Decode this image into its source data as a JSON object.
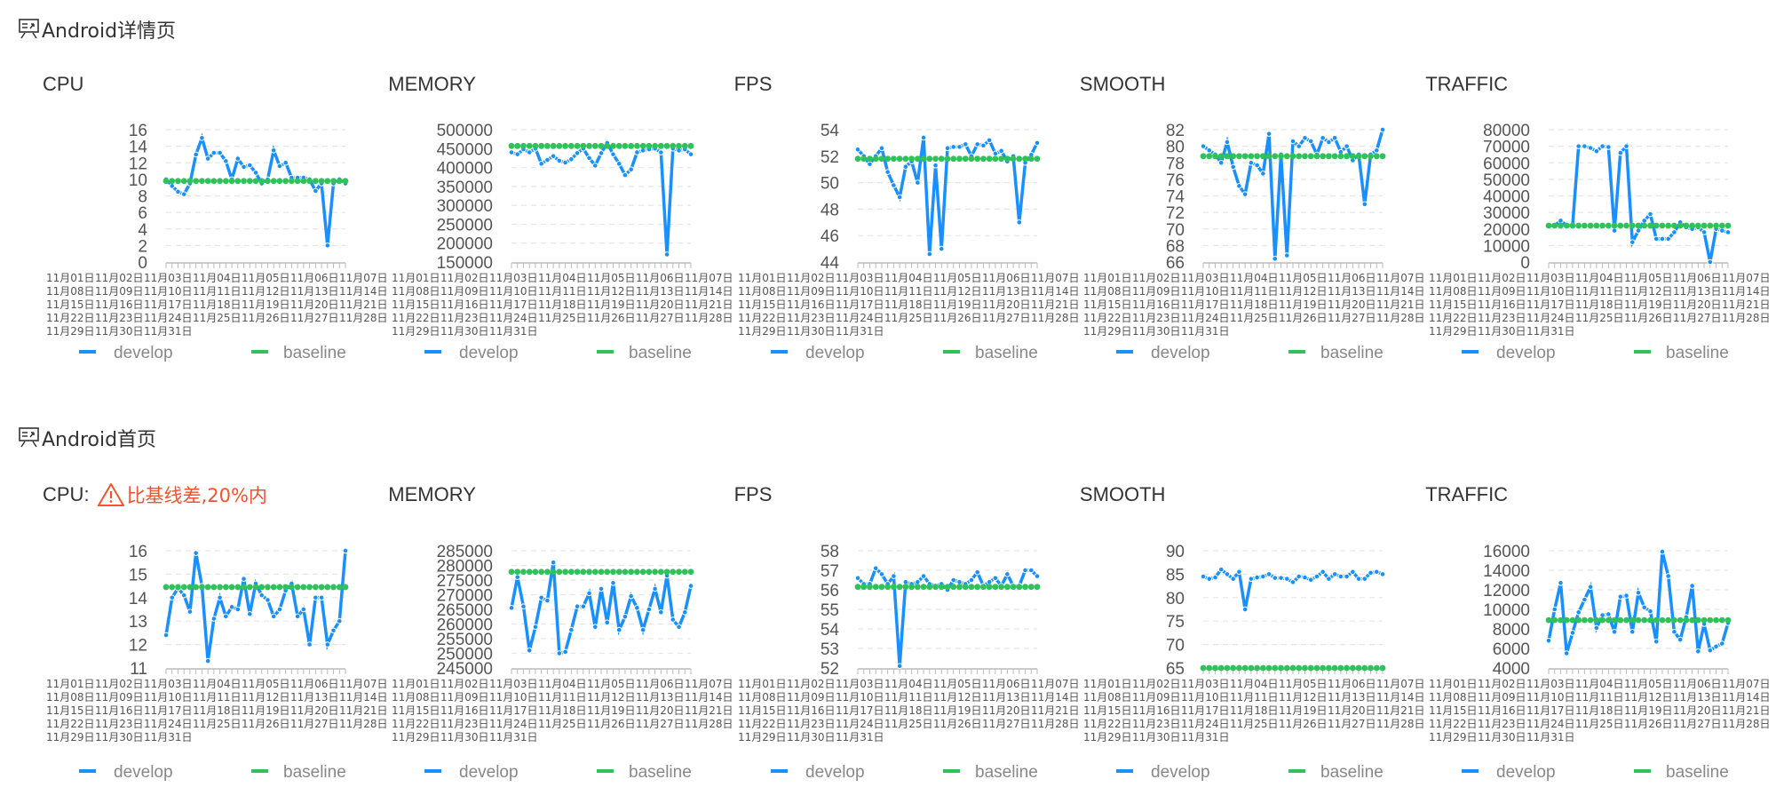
{
  "sections": [
    {
      "title": "Android详情页"
    },
    {
      "title": "Android首页"
    }
  ],
  "legend": {
    "develop": "develop",
    "baseline": "baseline"
  },
  "colors": {
    "develop": "#1890ff",
    "baseline": "#2fc25b",
    "warning": "#f5522d"
  },
  "x_categories": [
    "11月01日",
    "11月02日",
    "11月03日",
    "11月04日",
    "11月05日",
    "11月06日",
    "11月07日",
    "11月08日",
    "11月09日",
    "11月10日",
    "11月11日",
    "11月12日",
    "11月13日",
    "11月14日",
    "11月15日",
    "11月16日",
    "11月17日",
    "11月18日",
    "11月19日",
    "11月20日",
    "11月21日",
    "11月22日",
    "11月23日",
    "11月24日",
    "11月25日",
    "11月26日",
    "11月27日",
    "11月28日",
    "11月29日",
    "11月30日",
    "11月31日"
  ],
  "chart_data": [
    {
      "section": 0,
      "title": "CPU",
      "type": "line",
      "ylim": [
        0,
        16
      ],
      "yticks": [
        0,
        2,
        4,
        6,
        8,
        10,
        12,
        14,
        16
      ],
      "series": [
        {
          "name": "develop",
          "values": [
            10,
            9.2,
            8.5,
            8.2,
            9.5,
            13,
            15,
            12.5,
            13.2,
            13.2,
            12.2,
            10,
            12.5,
            11.5,
            11.7,
            10.8,
            9.5,
            10,
            13.5,
            11.6,
            12,
            10.2,
            10.2,
            10.2,
            10,
            8.6,
            9.5,
            2,
            9.5,
            10,
            9.5
          ]
        },
        {
          "name": "baseline",
          "value": 9.8
        }
      ]
    },
    {
      "section": 0,
      "title": "MEMORY",
      "type": "line",
      "ylim": [
        150000,
        500000
      ],
      "yticks": [
        150000,
        200000,
        250000,
        300000,
        350000,
        400000,
        450000,
        500000
      ],
      "series": [
        {
          "name": "develop",
          "values": [
            440000,
            435000,
            448000,
            440000,
            450000,
            410000,
            420000,
            430000,
            418000,
            413000,
            422000,
            438000,
            450000,
            425000,
            405000,
            438000,
            465000,
            435000,
            410000,
            380000,
            395000,
            440000,
            445000,
            448000,
            450000,
            440000,
            170000,
            450000,
            445000,
            448000,
            435000
          ]
        },
        {
          "name": "baseline",
          "value": 457000
        }
      ]
    },
    {
      "section": 0,
      "title": "FPS",
      "type": "line",
      "ylim": [
        44,
        54
      ],
      "yticks": [
        44,
        46,
        48,
        50,
        52,
        54
      ],
      "series": [
        {
          "name": "develop",
          "values": [
            52.5,
            52,
            51.4,
            52,
            52.6,
            50.8,
            49.8,
            48.9,
            51.2,
            51.6,
            50,
            53.4,
            44.6,
            51.3,
            45,
            52.6,
            52.7,
            52.7,
            52.9,
            52,
            52.9,
            52.8,
            53.2,
            52.2,
            52.4,
            51.6,
            52,
            47,
            51.5,
            52.1,
            53
          ]
        },
        {
          "name": "baseline",
          "value": 51.8
        }
      ]
    },
    {
      "section": 0,
      "title": "SMOOTH",
      "type": "line",
      "ylim": [
        66,
        82
      ],
      "yticks": [
        66,
        68,
        70,
        72,
        74,
        76,
        78,
        80,
        82
      ],
      "series": [
        {
          "name": "develop",
          "values": [
            80,
            79.5,
            79,
            78,
            80.5,
            77.5,
            75.2,
            74.2,
            78,
            77.7,
            76.7,
            81.5,
            66.4,
            79,
            66.8,
            80.6,
            80,
            81,
            80.6,
            79,
            81,
            80.5,
            81,
            79.3,
            80,
            78.3,
            79,
            73,
            79,
            79.5,
            82
          ]
        },
        {
          "name": "baseline",
          "value": 78.8
        }
      ]
    },
    {
      "section": 0,
      "title": "TRAFFIC",
      "type": "line",
      "ylim": [
        0,
        80000
      ],
      "yticks": [
        0,
        10000,
        20000,
        30000,
        40000,
        50000,
        60000,
        70000,
        80000
      ],
      "series": [
        {
          "name": "develop",
          "values": [
            22000,
            22000,
            25000,
            22000,
            22000,
            70000,
            70000,
            69000,
            67000,
            70000,
            69500,
            19000,
            66000,
            70000,
            12000,
            19000,
            25000,
            29000,
            14000,
            14000,
            14000,
            18000,
            24000,
            21000,
            20000,
            21000,
            18000,
            0,
            20000,
            19000,
            18000
          ]
        },
        {
          "name": "baseline",
          "value": 22000
        }
      ]
    },
    {
      "section": 1,
      "title": "CPU:",
      "warning": "比基线差,20%内",
      "type": "line",
      "ylim": [
        11,
        16
      ],
      "yticks": [
        11,
        12,
        13,
        14,
        15,
        16
      ],
      "series": [
        {
          "name": "develop",
          "values": [
            12.4,
            14,
            14.4,
            14.1,
            13.4,
            15.9,
            14.5,
            11.3,
            13.1,
            14,
            13.2,
            13.6,
            13.5,
            14.8,
            13.3,
            14.6,
            14.1,
            13.9,
            13.2,
            13.5,
            14.3,
            14.6,
            13.2,
            13.5,
            12,
            14,
            14,
            12,
            12.6,
            13,
            16
          ]
        },
        {
          "name": "baseline",
          "value": 14.45
        }
      ]
    },
    {
      "section": 1,
      "title": "MEMORY",
      "type": "line",
      "ylim": [
        245000,
        285000
      ],
      "yticks": [
        245000,
        250000,
        255000,
        260000,
        265000,
        270000,
        275000,
        280000,
        285000
      ],
      "series": [
        {
          "name": "develop",
          "values": [
            265500,
            276000,
            266000,
            251000,
            259000,
            269000,
            268000,
            281000,
            250000,
            250500,
            258000,
            266000,
            266000,
            270500,
            259000,
            272000,
            260500,
            274000,
            258000,
            262500,
            269500,
            265500,
            258000,
            265000,
            272000,
            264000,
            276500,
            261500,
            259000,
            264000,
            273000
          ]
        },
        {
          "name": "baseline",
          "value": 277800
        }
      ]
    },
    {
      "section": 1,
      "title": "FPS",
      "type": "line",
      "ylim": [
        52,
        58
      ],
      "yticks": [
        52,
        53,
        54,
        55,
        56,
        57,
        58
      ],
      "series": [
        {
          "name": "develop",
          "values": [
            56.6,
            56.3,
            56.3,
            57.1,
            56.8,
            56.3,
            56.7,
            52.1,
            56.4,
            56.3,
            56.4,
            56.7,
            56.3,
            56.2,
            56.3,
            56,
            56.5,
            56.4,
            56.3,
            56.5,
            56.9,
            56.2,
            56.4,
            56.6,
            56.2,
            56.8,
            56.2,
            56.2,
            57,
            57,
            56.7
          ]
        },
        {
          "name": "baseline",
          "value": 56.15
        }
      ]
    },
    {
      "section": 1,
      "title": "SMOOTH",
      "type": "line",
      "ylim": [
        65,
        90
      ],
      "yticks": [
        65,
        70,
        75,
        80,
        85,
        90
      ],
      "series": [
        {
          "name": "develop",
          "values": [
            84.5,
            84,
            84.3,
            86,
            85,
            84,
            85.5,
            77.5,
            84,
            84.3,
            84.5,
            85,
            84.2,
            84.2,
            84,
            83.3,
            84.5,
            84.3,
            83.8,
            84.5,
            85.5,
            84,
            85,
            84.5,
            84.5,
            85.5,
            84,
            84,
            85.3,
            85.5,
            85
          ]
        },
        {
          "name": "baseline",
          "value": 65
        }
      ]
    },
    {
      "section": 1,
      "title": "TRAFFIC",
      "type": "line",
      "ylim": [
        4000,
        16000
      ],
      "yticks": [
        4000,
        6000,
        8000,
        10000,
        12000,
        14000,
        16000
      ],
      "series": [
        {
          "name": "develop",
          "values": [
            6800,
            10000,
            12700,
            5500,
            7600,
            9700,
            11000,
            12300,
            8100,
            9400,
            9500,
            7700,
            11300,
            11400,
            7700,
            11700,
            10200,
            9800,
            6700,
            15900,
            13400,
            7700,
            6900,
            9200,
            12400,
            5700,
            8500,
            5800,
            6200,
            6500,
            8600
          ]
        },
        {
          "name": "baseline",
          "value": 8900
        }
      ]
    }
  ]
}
